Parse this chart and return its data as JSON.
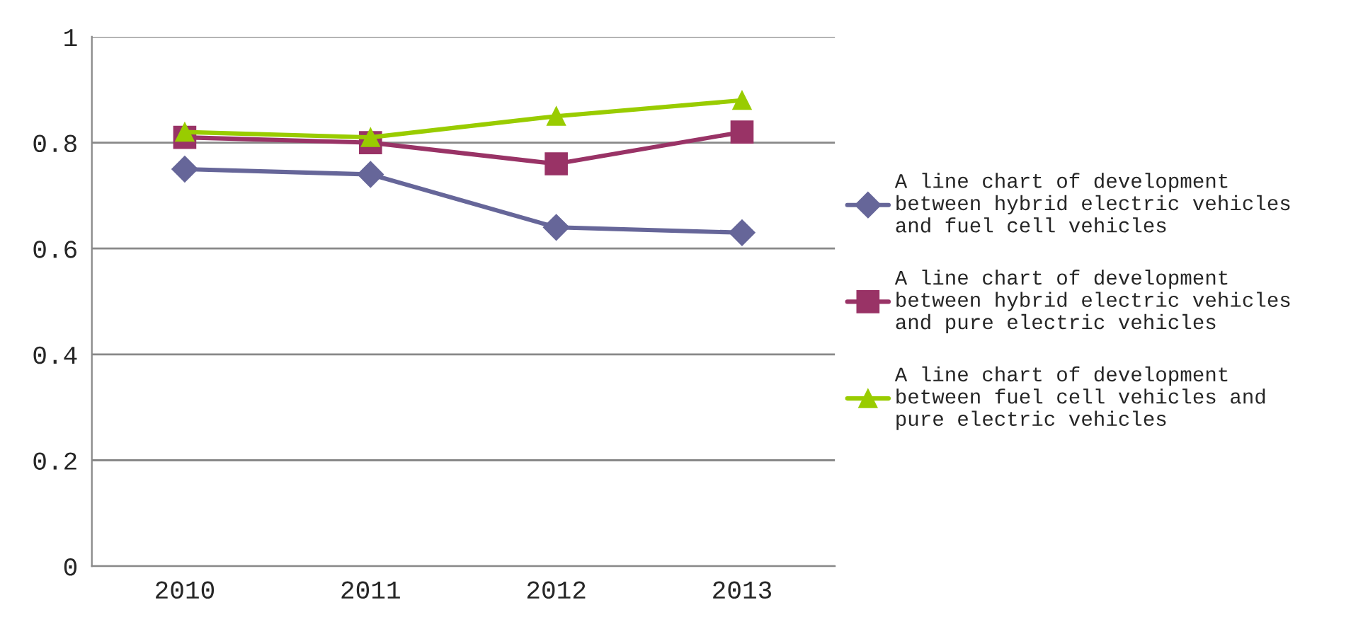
{
  "chart_data": {
    "type": "line",
    "categories": [
      "2010",
      "2011",
      "2012",
      "2013"
    ],
    "series": [
      {
        "name": "A line chart of development\nbetween hybrid electric vehicles\nand fuel cell vehicles",
        "color": "#666699",
        "marker": "diamond",
        "values": [
          0.75,
          0.74,
          0.64,
          0.63
        ]
      },
      {
        "name": "A line chart of development\nbetween hybrid electric vehicles\nand pure electric vehicles",
        "color": "#993366",
        "marker": "square",
        "values": [
          0.81,
          0.8,
          0.76,
          0.82
        ]
      },
      {
        "name": "A line chart of development\nbetween fuel cell vehicles and\npure electric vehicles",
        "color": "#99cc00",
        "marker": "triangle",
        "values": [
          0.82,
          0.81,
          0.85,
          0.88
        ]
      }
    ],
    "ylim": [
      0,
      1
    ],
    "yticks": [
      0,
      0.2,
      0.4,
      0.6,
      0.8,
      1
    ],
    "grid": "y",
    "legend": "right"
  }
}
